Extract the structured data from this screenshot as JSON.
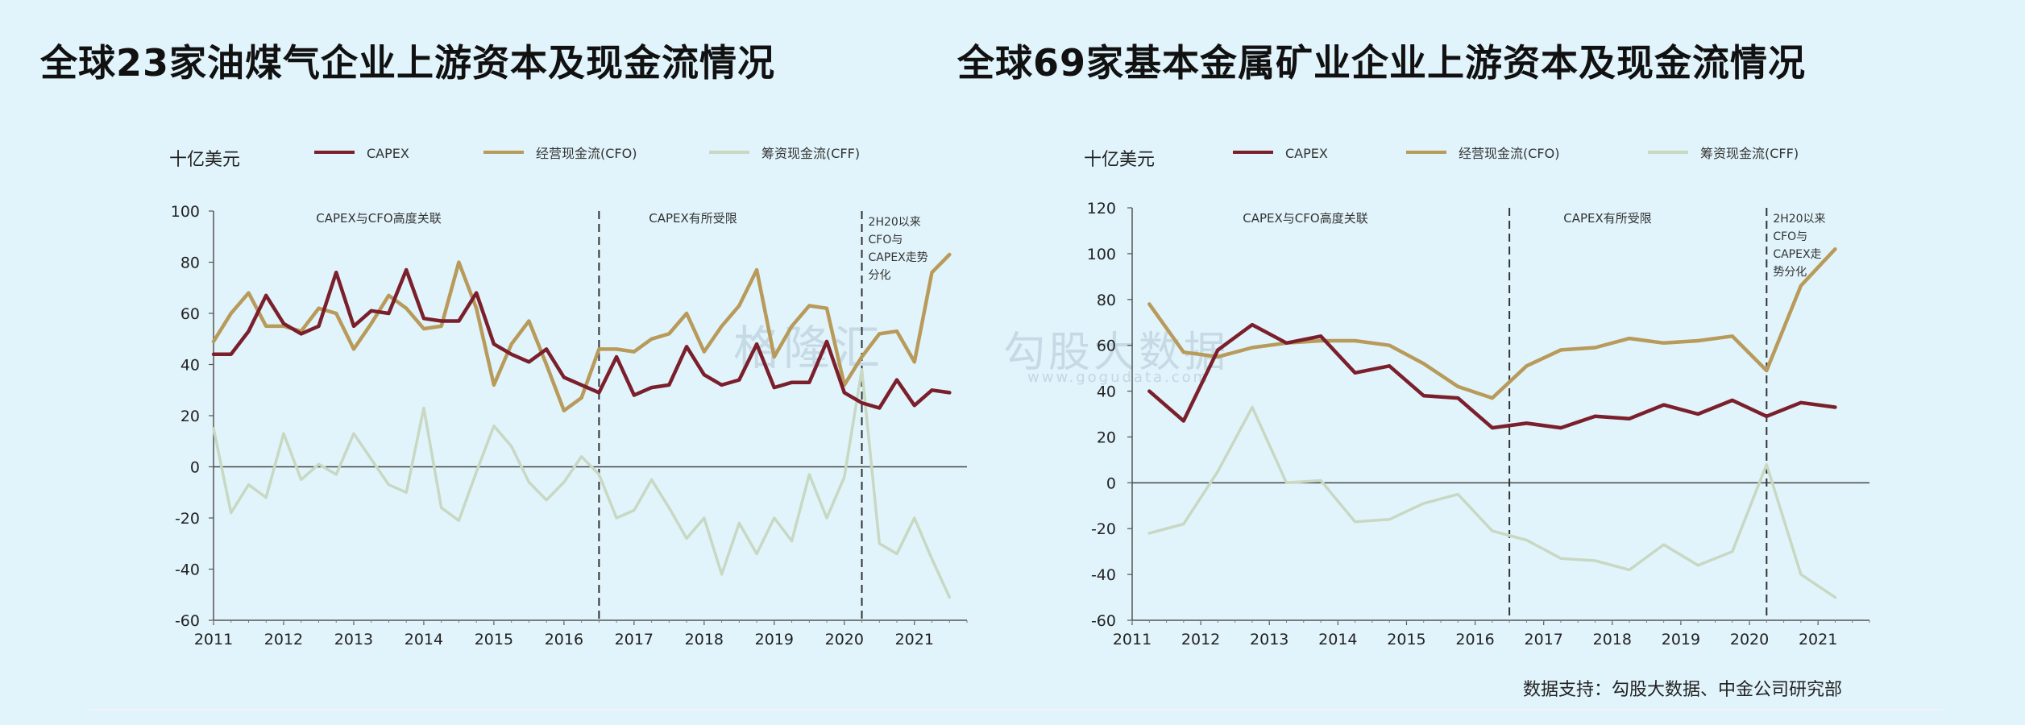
{
  "titles": {
    "left": "全球23家油煤气企业上游资本及现金流情况",
    "right": "全球69家基本金属矿业企业上游资本及现金流情况"
  },
  "source": "数据支持：勾股大数据、中金公司研究部",
  "watermark": {
    "left": "格隆汇",
    "right": "勾股大数据",
    "url": "www.gogudata.com"
  },
  "colors": {
    "capex": "#7a1f2b",
    "cfo": "#b89a5a",
    "cff": "#c8d8c2",
    "background": "#e1f4fb"
  },
  "chart_data": [
    {
      "type": "line",
      "title": "全球23家油煤气企业上游资本及现金流情况",
      "ylabel": "十亿美元",
      "ylim": [
        -60,
        100
      ],
      "yticks": [
        -60,
        -40,
        -20,
        0,
        20,
        40,
        60,
        80,
        100
      ],
      "xlim": [
        2011.0,
        2021.75
      ],
      "xticks": [
        "2011",
        "2012",
        "2013",
        "2014",
        "2015",
        "2016",
        "2017",
        "2018",
        "2019",
        "2020",
        "2021"
      ],
      "annotations": [
        "CAPEX与CFO高度关联",
        "CAPEX有所受限",
        "2H20以来\nCFO与\nCAPEX走势\n分化"
      ],
      "dividers": [
        2016.5,
        2020.25
      ],
      "series": [
        {
          "name": "CAPEX",
          "x": [
            2011.0,
            2011.25,
            2011.5,
            2011.75,
            2012.0,
            2012.25,
            2012.5,
            2012.75,
            2013.0,
            2013.25,
            2013.5,
            2013.75,
            2014.0,
            2014.25,
            2014.5,
            2014.75,
            2015.0,
            2015.25,
            2015.5,
            2015.75,
            2016.0,
            2016.25,
            2016.5,
            2016.75,
            2017.0,
            2017.25,
            2017.5,
            2017.75,
            2018.0,
            2018.25,
            2018.5,
            2018.75,
            2019.0,
            2019.25,
            2019.5,
            2019.75,
            2020.0,
            2020.25,
            2020.5,
            2020.75,
            2021.0,
            2021.25,
            2021.5
          ],
          "values": [
            44,
            44,
            53,
            67,
            56,
            52,
            55,
            76,
            55,
            61,
            60,
            77,
            58,
            57,
            57,
            68,
            48,
            44,
            41,
            46,
            35,
            32,
            29,
            43,
            28,
            31,
            32,
            47,
            36,
            32,
            34,
            48,
            31,
            33,
            33,
            49,
            29,
            25,
            23,
            34,
            24,
            30,
            29
          ]
        },
        {
          "name": "经营现金流(CFO)",
          "x": [
            2011.0,
            2011.25,
            2011.5,
            2011.75,
            2012.0,
            2012.25,
            2012.5,
            2012.75,
            2013.0,
            2013.25,
            2013.5,
            2013.75,
            2014.0,
            2014.25,
            2014.5,
            2014.75,
            2015.0,
            2015.25,
            2015.5,
            2015.75,
            2016.0,
            2016.25,
            2016.5,
            2016.75,
            2017.0,
            2017.25,
            2017.5,
            2017.75,
            2018.0,
            2018.25,
            2018.5,
            2018.75,
            2019.0,
            2019.25,
            2019.5,
            2019.75,
            2020.0,
            2020.25,
            2020.5,
            2020.75,
            2021.0,
            2021.25,
            2021.5
          ],
          "values": [
            49,
            60,
            68,
            55,
            55,
            53,
            62,
            60,
            46,
            56,
            67,
            62,
            54,
            55,
            80,
            62,
            32,
            48,
            57,
            40,
            22,
            27,
            46,
            46,
            45,
            50,
            52,
            60,
            45,
            55,
            63,
            77,
            43,
            55,
            63,
            62,
            32,
            43,
            52,
            53,
            41,
            76,
            83
          ]
        },
        {
          "name": "筹资现金流(CFF)",
          "x": [
            2011.0,
            2011.25,
            2011.5,
            2011.75,
            2012.0,
            2012.25,
            2012.5,
            2012.75,
            2013.0,
            2013.25,
            2013.5,
            2013.75,
            2014.0,
            2014.25,
            2014.5,
            2014.75,
            2015.0,
            2015.25,
            2015.5,
            2015.75,
            2016.0,
            2016.25,
            2016.5,
            2016.75,
            2017.0,
            2017.25,
            2017.5,
            2017.75,
            2018.0,
            2018.25,
            2018.5,
            2018.75,
            2019.0,
            2019.25,
            2019.5,
            2019.75,
            2020.0,
            2020.25,
            2020.5,
            2020.75,
            2021.0,
            2021.25,
            2021.5
          ],
          "values": [
            15,
            -18,
            -7,
            -12,
            13,
            -5,
            1,
            -3,
            13,
            3,
            -7,
            -10,
            23,
            -16,
            -21,
            -2,
            16,
            8,
            -6,
            -13,
            -6,
            4,
            -3,
            -20,
            -17,
            -5,
            -16,
            -28,
            -20,
            -42,
            -22,
            -34,
            -20,
            -29,
            -3,
            -20,
            -4,
            38,
            -30,
            -34,
            -20,
            -36,
            -51
          ]
        }
      ]
    },
    {
      "type": "line",
      "title": "全球69家基本金属矿业企业上游资本及现金流情况",
      "ylabel": "十亿美元",
      "ylim": [
        -60,
        120
      ],
      "yticks": [
        -60,
        -40,
        -20,
        0,
        20,
        40,
        60,
        80,
        100,
        120
      ],
      "xlim": [
        2011.0,
        2021.75
      ],
      "xticks": [
        "2011",
        "2012",
        "2013",
        "2014",
        "2015",
        "2016",
        "2017",
        "2018",
        "2019",
        "2020",
        "2021"
      ],
      "annotations": [
        "CAPEX与CFO高度关联",
        "CAPEX有所受限",
        "2H20以来\nCFO与\nCAPEX走\n势分化"
      ],
      "dividers": [
        2016.5,
        2020.25
      ],
      "series": [
        {
          "name": "CAPEX",
          "x": [
            2011.25,
            2011.75,
            2012.25,
            2012.75,
            2013.25,
            2013.75,
            2014.25,
            2014.75,
            2015.25,
            2015.75,
            2016.25,
            2016.75,
            2017.25,
            2017.75,
            2018.25,
            2018.75,
            2019.25,
            2019.75,
            2020.25,
            2020.75,
            2021.25
          ],
          "values": [
            40,
            27,
            58,
            69,
            61,
            64,
            48,
            51,
            38,
            37,
            24,
            26,
            24,
            29,
            28,
            34,
            30,
            36,
            29,
            35,
            33
          ]
        },
        {
          "name": "经营现金流(CFO)",
          "x": [
            2011.25,
            2011.75,
            2012.25,
            2012.75,
            2013.25,
            2013.75,
            2014.25,
            2014.75,
            2015.25,
            2015.75,
            2016.25,
            2016.75,
            2017.25,
            2017.75,
            2018.25,
            2018.75,
            2019.25,
            2019.75,
            2020.25,
            2020.75,
            2021.25
          ],
          "values": [
            78,
            57,
            55,
            59,
            61,
            62,
            62,
            60,
            52,
            42,
            37,
            51,
            58,
            59,
            63,
            61,
            62,
            64,
            49,
            86,
            102
          ]
        },
        {
          "name": "筹资现金流(CFF)",
          "x": [
            2011.25,
            2011.75,
            2012.25,
            2012.75,
            2013.25,
            2013.75,
            2014.25,
            2014.75,
            2015.25,
            2015.75,
            2016.25,
            2016.75,
            2017.25,
            2017.75,
            2018.25,
            2018.75,
            2019.25,
            2019.75,
            2020.25,
            2020.75,
            2021.25
          ],
          "values": [
            -22,
            -18,
            5,
            33,
            0,
            1,
            -17,
            -16,
            -9,
            -5,
            -21,
            -25,
            -33,
            -34,
            -38,
            -27,
            -36,
            -30,
            8,
            -40,
            -50
          ]
        }
      ]
    }
  ]
}
